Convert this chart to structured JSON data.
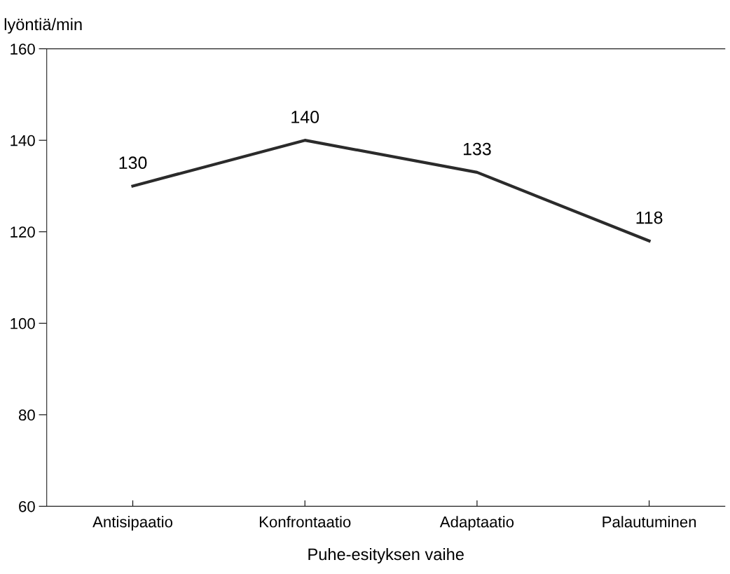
{
  "chart_data": {
    "type": "line",
    "xlabel": "Puhe-esityksen vaihe",
    "ylabel": "lyöntiä/min",
    "categories": [
      "Antisipaatio",
      "Konfrontaatio",
      "Adaptaatio",
      "Palautuminen"
    ],
    "values": [
      130,
      140,
      133,
      118
    ],
    "color": "#2b2b2b",
    "ylim": [
      60,
      160
    ],
    "yticks": [
      60,
      80,
      100,
      120,
      140,
      160
    ],
    "data_labels": true,
    "grid": false,
    "legend": false,
    "marker": "none",
    "line_style": "solid"
  }
}
